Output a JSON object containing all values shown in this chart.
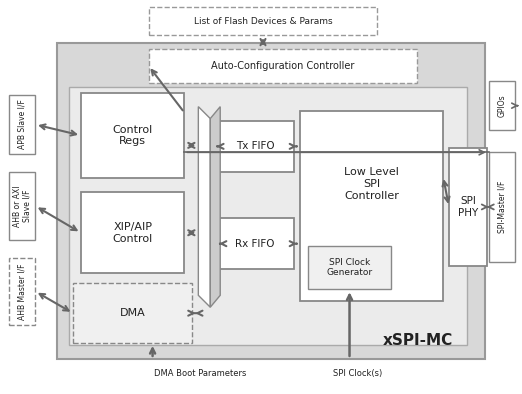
{
  "bg_color": "#ffffff",
  "outer_fill": "#d8d8d8",
  "outer_edge": "#999999",
  "inner_fill": "#e8e8e8",
  "inner_edge": "#aaaaaa",
  "block_fill": "#ffffff",
  "block_edge": "#888888",
  "dashed_fill": "#f4f4f4",
  "arrow_color": "#666666",
  "title": "xSPI-MC",
  "flash_label": "List of Flash Devices & Params",
  "auto_label": "Auto-Configuration Controller",
  "ctrl_label": "Control\nRegs",
  "xip_label": "XIP/AIP\nControl",
  "dma_label": "DMA",
  "llc_label": "Low Level\nSPI\nController",
  "tx_label": "Tx FIFO",
  "rx_label": "Rx FIFO",
  "clk_label": "SPI Clock\nGenerator",
  "phy_label": "SPI\nPHY",
  "apb_label": "APB Slave I/F",
  "ahb_slave_label": "AHB or AXI\nSlave I/F",
  "ahb_master_label": "AHB Master I/F",
  "gpio_label": "GPIOs",
  "spi_mif_label": "SPI-Master I/F",
  "dma_boot_label": "DMA Boot Parameters",
  "spi_clk_label": "SPI Clock(s)"
}
